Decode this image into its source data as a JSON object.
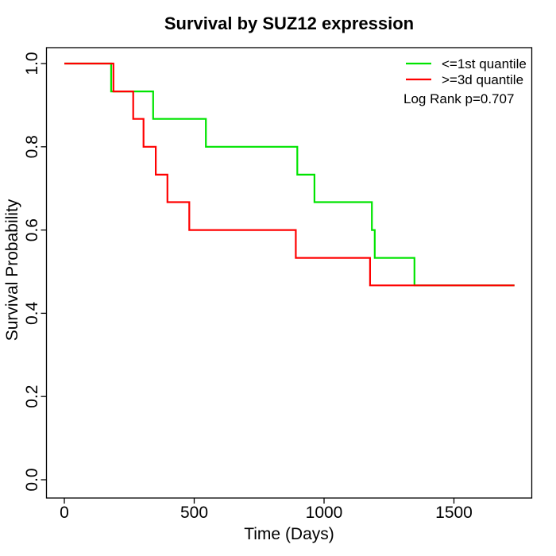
{
  "chart_data": {
    "type": "line",
    "subtype": "kaplan-meier-step",
    "title": "Survival by SUZ12 expression",
    "xlabel": "Time (Days)",
    "ylabel": "Survival Probability",
    "xticks": [
      0,
      500,
      1000,
      1500
    ],
    "ytick_labels": [
      "0.0",
      "0.2",
      "0.4",
      "0.6",
      "0.8",
      "1.0"
    ],
    "yticks": [
      0.0,
      0.2,
      0.4,
      0.6,
      0.8,
      1.0
    ],
    "xlim": [
      0,
      1800
    ],
    "ylim": [
      0,
      1
    ],
    "grid": false,
    "legend_position": "top-right",
    "annotation": "Log Rank p=0.707",
    "end_time": 1733,
    "axis_color": "#000000",
    "series": [
      {
        "name": "<=1st quantile",
        "color": "#00e400",
        "steps": [
          [
            0,
            1.0
          ],
          [
            180,
            0.933
          ],
          [
            342,
            0.867
          ],
          [
            545,
            0.8
          ],
          [
            897,
            0.733
          ],
          [
            963,
            0.667
          ],
          [
            1184,
            0.6
          ],
          [
            1195,
            0.533
          ],
          [
            1348,
            0.467
          ]
        ]
      },
      {
        "name": ">=3d quantile",
        "color": "#ff0000",
        "steps": [
          [
            0,
            1.0
          ],
          [
            189,
            0.933
          ],
          [
            265,
            0.867
          ],
          [
            305,
            0.8
          ],
          [
            352,
            0.733
          ],
          [
            397,
            0.667
          ],
          [
            481,
            0.6
          ],
          [
            891,
            0.533
          ],
          [
            1177,
            0.467
          ]
        ]
      }
    ]
  }
}
